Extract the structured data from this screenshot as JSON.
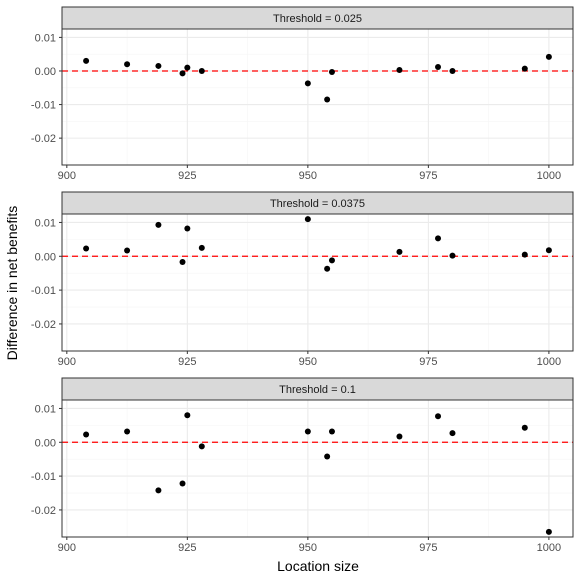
{
  "chart_data": {
    "type": "scatter",
    "xlabel": "Location size",
    "ylabel": "Difference in net benefits",
    "xlim": [
      899,
      1005
    ],
    "ylim": [
      -0.028,
      0.0125
    ],
    "x_ticks": [
      {
        "value": 900,
        "label": "900"
      },
      {
        "value": 925,
        "label": "925"
      },
      {
        "value": 950,
        "label": "950"
      },
      {
        "value": 975,
        "label": "975"
      },
      {
        "value": 1000,
        "label": "1000"
      }
    ],
    "y_ticks": [
      {
        "value": 0.01,
        "label": "0.01"
      },
      {
        "value": 0.0,
        "label": "0.00"
      },
      {
        "value": -0.01,
        "label": "-0.01"
      },
      {
        "value": -0.02,
        "label": "-0.02"
      }
    ],
    "grid": true,
    "reference_line": {
      "y": 0,
      "style": "dashed",
      "color": "#ff0000"
    },
    "colors": {
      "point": "#000000",
      "strip_fill": "#d9d9d9",
      "grid_major": "#ebebeb",
      "grid_minor": "#f5f5f5",
      "panel_border": "#333333",
      "reference": "#ff0000"
    },
    "panels": [
      {
        "title": "Threshold = 0.025",
        "x": [
          904,
          912.5,
          919,
          924,
          925,
          928,
          950,
          954,
          955,
          969,
          977,
          980,
          995,
          1000
        ],
        "y": [
          0.003,
          0.002,
          0.0015,
          -0.0007,
          0.001,
          0.0,
          -0.0037,
          -0.0085,
          -0.0003,
          0.0003,
          0.0012,
          0.0,
          0.0007,
          0.0042
        ]
      },
      {
        "title": "Threshold = 0.0375",
        "x": [
          904,
          912.5,
          919,
          924,
          925,
          928,
          950,
          954,
          955,
          969,
          977,
          980,
          995,
          1000
        ],
        "y": [
          0.0023,
          0.0017,
          0.0093,
          -0.0017,
          0.0082,
          0.0025,
          0.011,
          -0.0037,
          -0.0012,
          0.0013,
          0.0053,
          0.0002,
          0.0005,
          0.0018
        ]
      },
      {
        "title": "Threshold = 0.1",
        "x": [
          904,
          912.5,
          919,
          924,
          925,
          928,
          950,
          954,
          955,
          969,
          977,
          980,
          995,
          1000
        ],
        "y": [
          0.0023,
          0.0032,
          -0.0142,
          -0.0122,
          0.008,
          -0.0012,
          0.0032,
          -0.0042,
          0.0032,
          0.0017,
          0.0077,
          0.0027,
          0.0043,
          -0.0265
        ]
      }
    ]
  }
}
